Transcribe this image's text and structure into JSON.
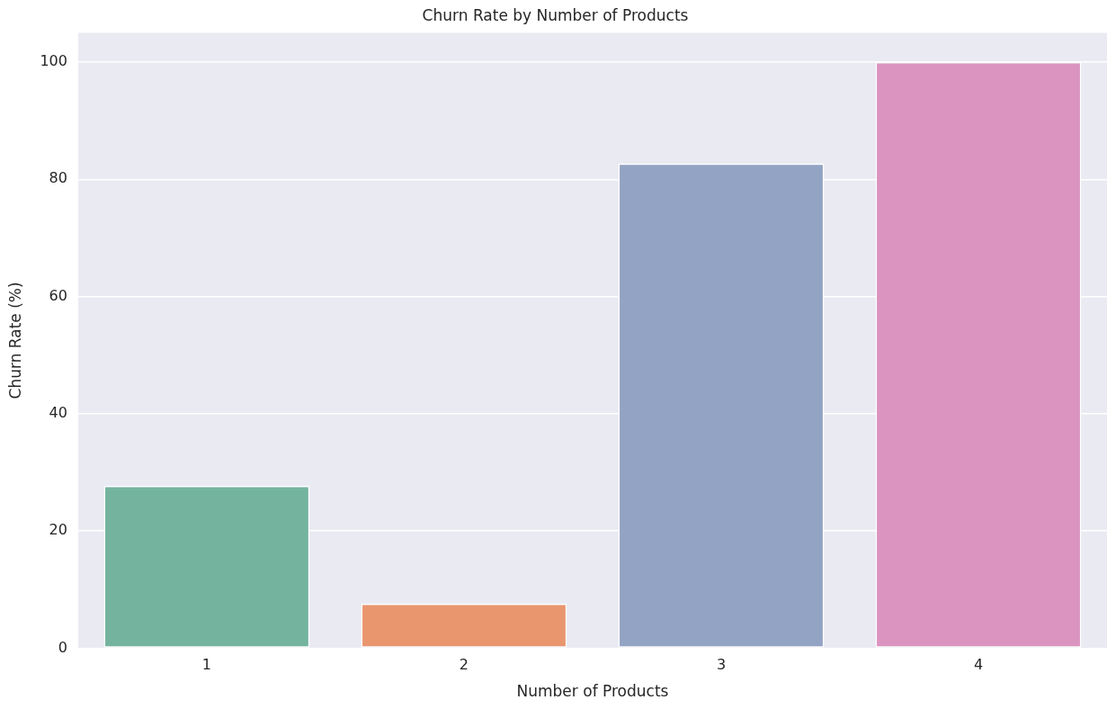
{
  "chart_data": {
    "type": "bar",
    "title": "Churn Rate by Number of Products",
    "xlabel": "Number of Products",
    "ylabel": "Churn Rate (%)",
    "categories": [
      "1",
      "2",
      "3",
      "4"
    ],
    "values": [
      27.7,
      7.6,
      82.7,
      100
    ],
    "colors": [
      "#74b49f",
      "#e9966f",
      "#93a3c3",
      "#db94bf"
    ],
    "ylim": [
      0,
      105
    ],
    "yticks": [
      0,
      20,
      40,
      60,
      80,
      100
    ],
    "grid": "y"
  }
}
